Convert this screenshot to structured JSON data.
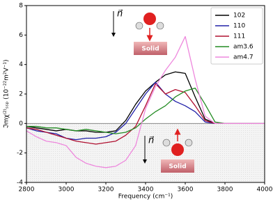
{
  "chart_data": {
    "type": "line",
    "xlabel": "Frequency (cm⁻¹)",
    "ylabel": "ℑmχ⁽²⁾ₛₛₚ (10⁻²²m²V⁻¹)",
    "annotations": [
      "n⃗",
      "Solid",
      "n⃗",
      "Solid"
    ],
    "x": [
      2800,
      2850,
      2900,
      2950,
      3000,
      3050,
      3100,
      3150,
      3200,
      3250,
      3300,
      3350,
      3400,
      3450,
      3500,
      3550,
      3600,
      3650,
      3700,
      3750,
      3800,
      3850,
      3900,
      3950,
      4000
    ],
    "series": [
      {
        "name": "102",
        "color": "#000000",
        "values": [
          -0.2,
          -0.3,
          -0.4,
          -0.5,
          -0.4,
          -0.5,
          -0.5,
          -0.6,
          -0.6,
          -0.5,
          0.2,
          1.3,
          2.2,
          2.8,
          3.3,
          3.5,
          3.4,
          1.8,
          0.3,
          0,
          0,
          0,
          0,
          0,
          0
        ]
      },
      {
        "name": "110",
        "color": "#2020a8",
        "values": [
          -0.3,
          -0.5,
          -0.6,
          -0.7,
          -1.0,
          -1.1,
          -1.0,
          -1.0,
          -0.9,
          -0.6,
          0.0,
          1.0,
          2.0,
          2.8,
          2.0,
          1.5,
          1.2,
          0.8,
          0.1,
          0,
          0,
          0,
          0,
          0,
          0
        ]
      },
      {
        "name": "111",
        "color": "#b01030",
        "values": [
          -0.3,
          -0.4,
          -0.6,
          -0.8,
          -1.0,
          -1.2,
          -1.3,
          -1.4,
          -1.3,
          -1.2,
          -0.8,
          -0.2,
          1.2,
          2.7,
          2.0,
          2.3,
          2.1,
          1.2,
          0.2,
          0,
          0,
          0,
          0,
          0,
          0
        ]
      },
      {
        "name": "am3.6",
        "color": "#228b22",
        "values": [
          -0.2,
          -0.2,
          -0.3,
          -0.3,
          -0.4,
          -0.5,
          -0.4,
          -0.5,
          -0.6,
          -0.7,
          -0.6,
          -0.3,
          0.3,
          0.8,
          1.2,
          1.8,
          2.2,
          2.4,
          1.3,
          0.1,
          0,
          0,
          0,
          0,
          0
        ]
      },
      {
        "name": "am4.7",
        "color": "#ee88dd",
        "values": [
          -0.5,
          -0.9,
          -1.2,
          -1.3,
          -1.5,
          -2.3,
          -2.7,
          -2.9,
          -3.0,
          -2.9,
          -2.5,
          -1.5,
          1.0,
          2.5,
          3.6,
          4.5,
          5.9,
          3.0,
          0.5,
          0,
          0,
          0,
          0,
          0,
          0
        ]
      }
    ],
    "xlim": [
      2800,
      4000
    ],
    "xticks": [
      2800,
      3000,
      3200,
      3400,
      3600,
      3800,
      4000
    ],
    "ylim": [
      -4,
      8
    ],
    "yticks": [
      -4,
      -2,
      0,
      2,
      4,
      6,
      8
    ],
    "legend": "upper right"
  }
}
